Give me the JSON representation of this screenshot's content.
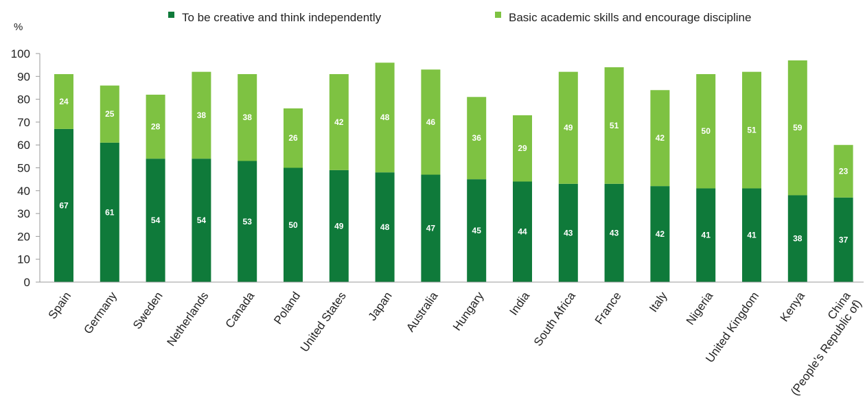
{
  "chart_data": {
    "type": "bar",
    "stacked": true,
    "ylabel": "%",
    "ylim": [
      0,
      100
    ],
    "yticks": [
      0,
      10,
      20,
      30,
      40,
      50,
      60,
      70,
      80,
      90,
      100
    ],
    "grid": false,
    "legend_position": "top",
    "categories": [
      "Spain",
      "Germany",
      "Sweden",
      "Netherlands",
      "Canada",
      "Poland",
      "United States",
      "Japan",
      "Australia",
      "Hungary",
      "India",
      "South Africa",
      "France",
      "Italy",
      "Nigeria",
      "United Kingdom",
      "Kenya",
      "China\n(People's Republic of)"
    ],
    "series": [
      {
        "name": "To be creative and think independently",
        "color": "#0f7a3a",
        "values": [
          67,
          61,
          54,
          54,
          53,
          50,
          49,
          48,
          47,
          45,
          44,
          43,
          43,
          42,
          41,
          41,
          38,
          37
        ]
      },
      {
        "name": "Basic academic skills and encourage discipline",
        "color": "#7ec242",
        "values": [
          24,
          25,
          28,
          38,
          38,
          26,
          42,
          48,
          46,
          36,
          29,
          49,
          51,
          42,
          50,
          51,
          59,
          23
        ]
      }
    ]
  }
}
